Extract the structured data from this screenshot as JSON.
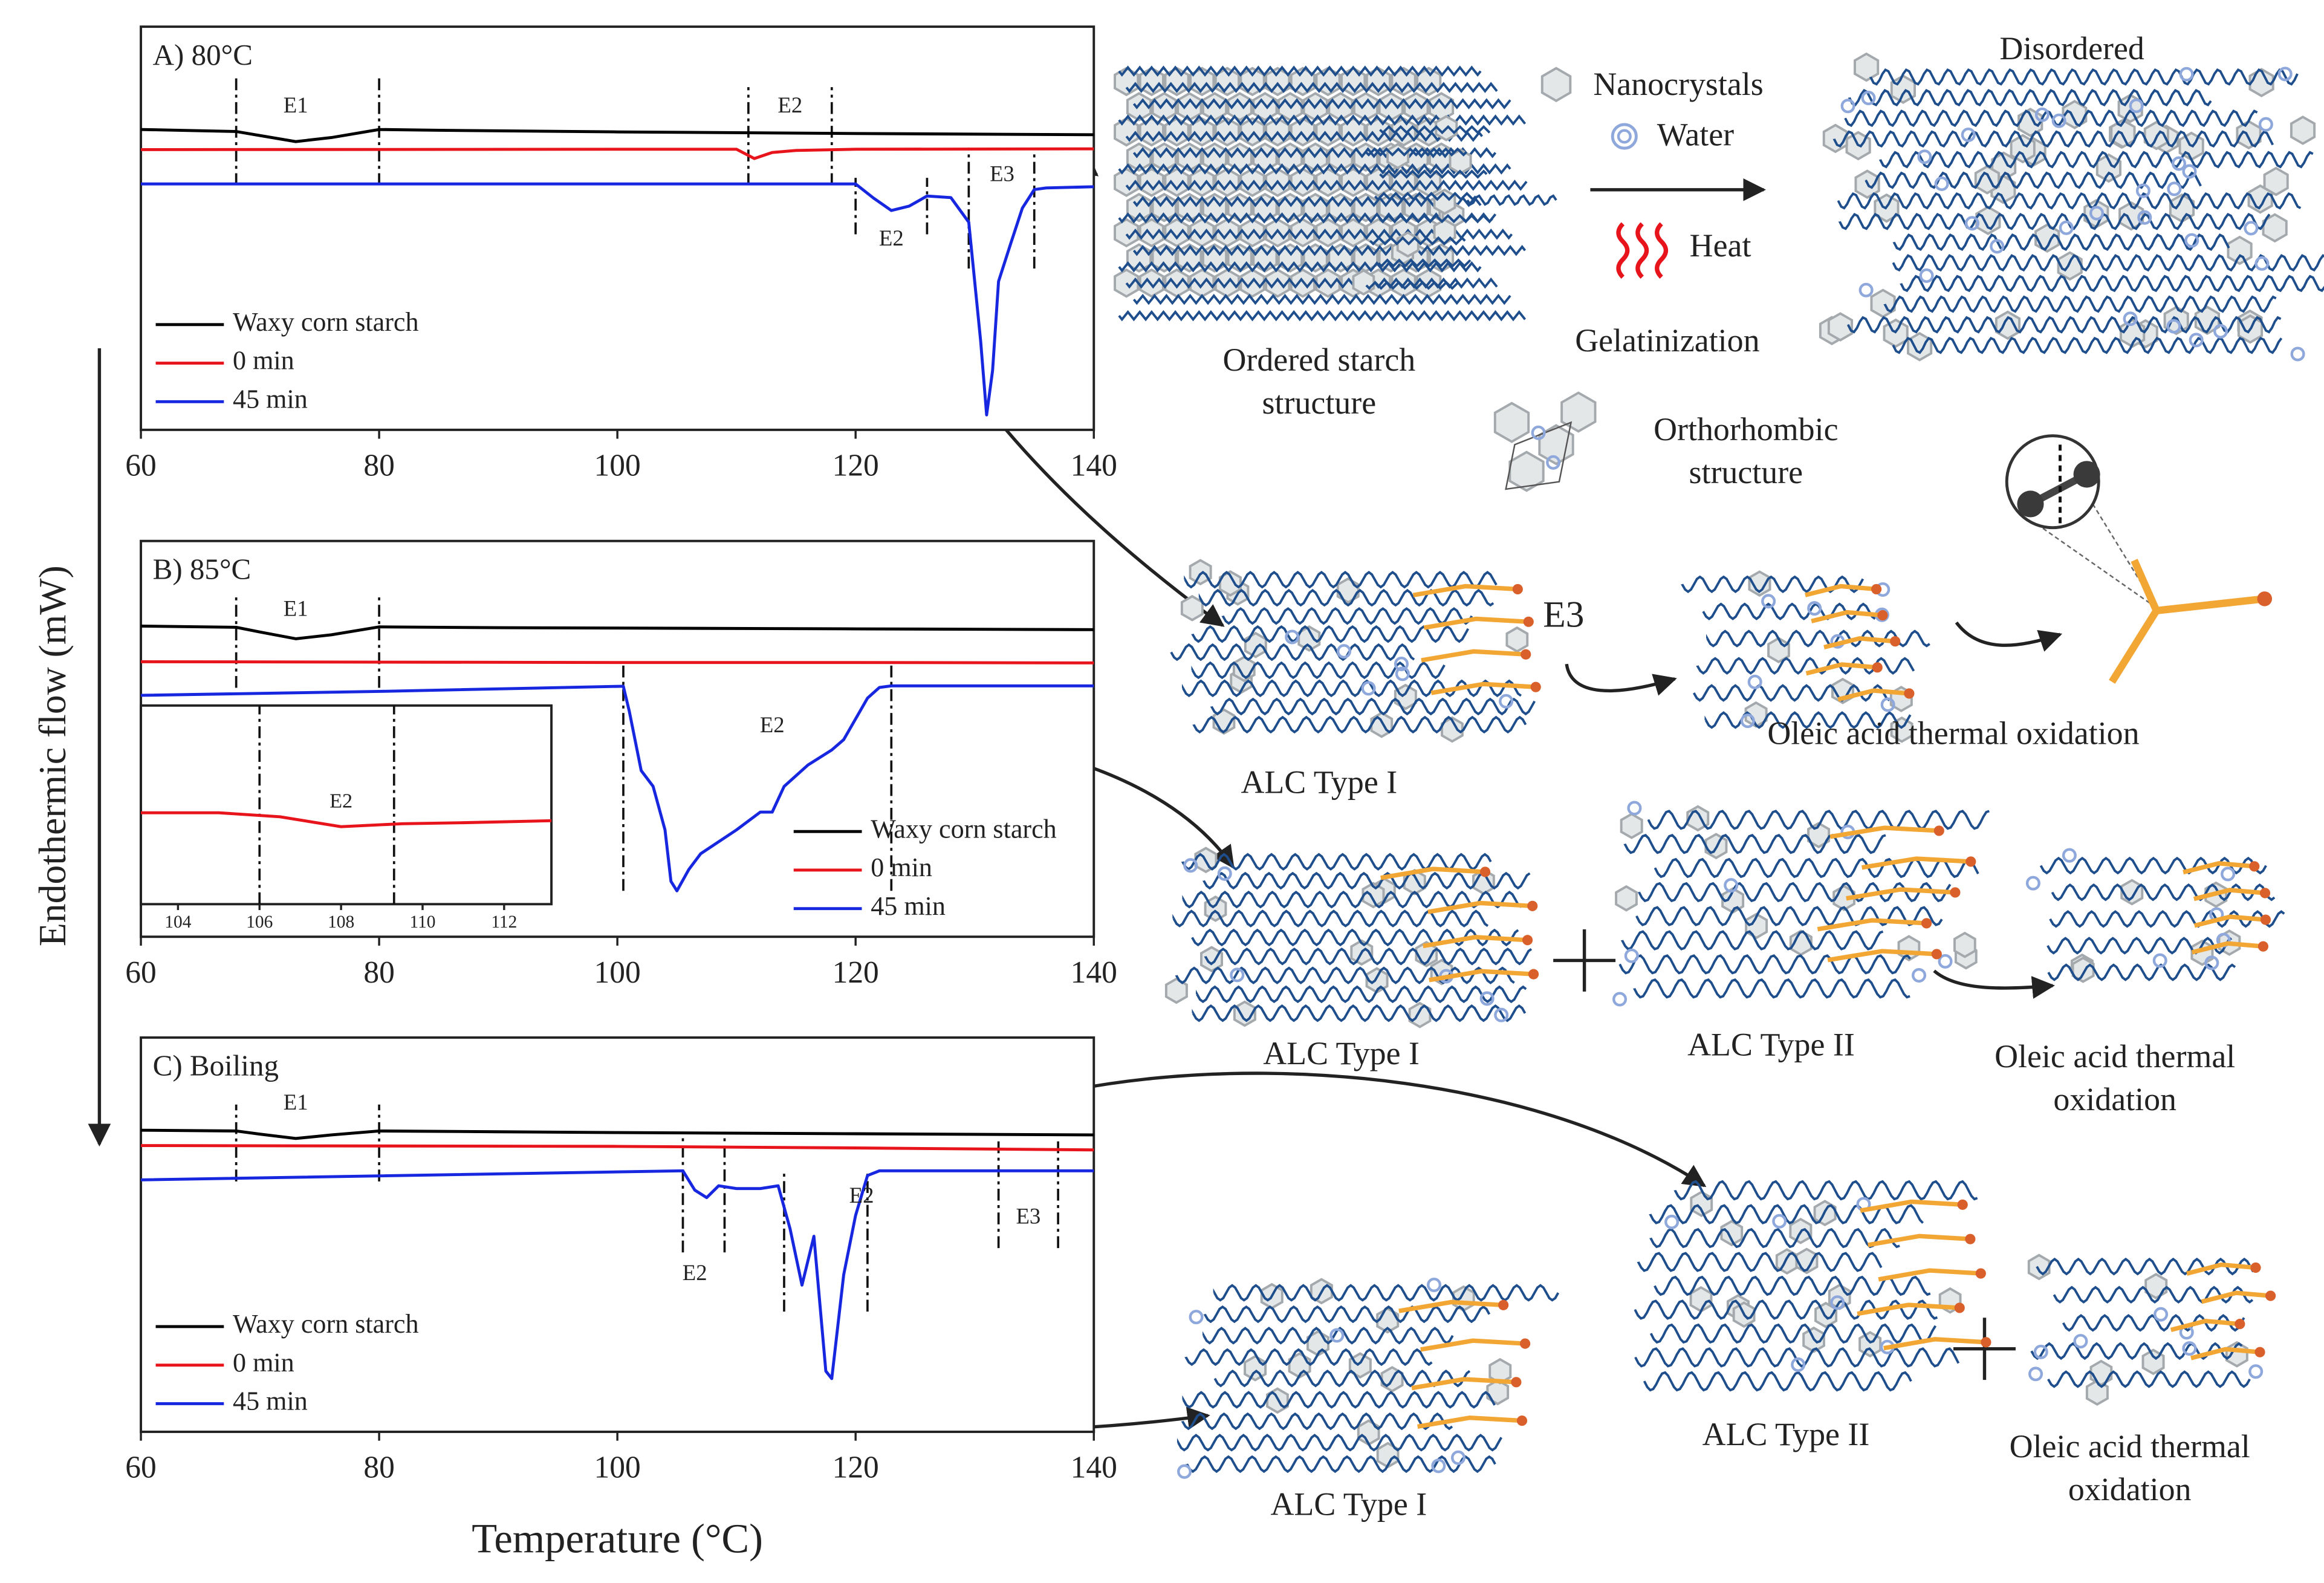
{
  "figure": {
    "ylabel": "Endothermic flow (mW)"
  },
  "chart_data": [
    {
      "type": "line",
      "title": "A) 80°C",
      "xlim": [
        60,
        140
      ],
      "xticks": [
        60,
        80,
        100,
        120,
        140
      ],
      "ylim": [
        0,
        100
      ],
      "legend": "lower left",
      "series": [
        {
          "name": "Waxy corn starch",
          "color": "#000000",
          "x": [
            60,
            68,
            70,
            73,
            76,
            80,
            85,
            100,
            120,
            140
          ],
          "values": [
            74.5,
            74,
            73,
            71.5,
            72.5,
            74.5,
            74.3,
            73.9,
            73.5,
            73.2
          ]
        },
        {
          "name": "0 min",
          "color": "#e8141c",
          "x": [
            60,
            100,
            110,
            111.5,
            113,
            115,
            120,
            140
          ],
          "values": [
            69.5,
            69.6,
            69.6,
            67.3,
            68.8,
            69.3,
            69.6,
            69.7
          ]
        },
        {
          "name": "45 min",
          "color": "#1727e0",
          "x": [
            60,
            100,
            120,
            121.5,
            123,
            124.5,
            126,
            128,
            129.5,
            130.5,
            131,
            131.5,
            132,
            133,
            134,
            135,
            136,
            140
          ],
          "values": [
            61,
            61,
            61,
            57.5,
            54.4,
            55.5,
            58,
            57.6,
            51.5,
            22,
            3.7,
            14.7,
            36.8,
            46,
            55,
            59.6,
            60,
            60.3
          ]
        }
      ],
      "dividers": [
        {
          "x": 68,
          "from": 60.7,
          "to": 88
        },
        {
          "x": 80,
          "from": 60.7,
          "to": 88
        },
        {
          "x": 111,
          "from": 60.7,
          "to": 85
        },
        {
          "x": 118,
          "from": 60.7,
          "to": 85
        },
        {
          "x": 120,
          "from": 48.5,
          "to": 62.5
        },
        {
          "x": 126,
          "from": 48.5,
          "to": 62.5
        },
        {
          "x": 129.5,
          "from": 40,
          "to": 70
        },
        {
          "x": 135,
          "from": 40,
          "to": 70
        }
      ],
      "annotations": [
        {
          "text": "E1",
          "x": 73,
          "y": 80
        },
        {
          "text": "E2",
          "x": 114.5,
          "y": 80
        },
        {
          "text": "E2",
          "x": 123,
          "y": 47
        },
        {
          "text": "E3",
          "x": 132.3,
          "y": 63
        }
      ]
    },
    {
      "type": "line",
      "title": "B) 85°C",
      "xlim": [
        60,
        140
      ],
      "xticks": [
        60,
        80,
        100,
        120,
        140
      ],
      "ylim": [
        0,
        100
      ],
      "legend": "lower right",
      "series": [
        {
          "name": "Waxy corn starch",
          "color": "#000000",
          "x": [
            60,
            68,
            70,
            73,
            76,
            80,
            90,
            100,
            120,
            140
          ],
          "values": [
            78.5,
            78.2,
            77,
            75.3,
            76.3,
            78.3,
            78.1,
            78,
            77.8,
            77.6
          ]
        },
        {
          "name": "0 min",
          "color": "#e8141c",
          "x": [
            60,
            100,
            120,
            140
          ],
          "values": [
            69.5,
            69.3,
            69.3,
            69.2
          ]
        },
        {
          "name": "45 min",
          "color": "#1727e0",
          "x": [
            60,
            80,
            100.5,
            101,
            102,
            103,
            104,
            104.5,
            105,
            106,
            107,
            110,
            112,
            113,
            114,
            116,
            118,
            119,
            121,
            122,
            123,
            140
          ],
          "values": [
            61,
            62,
            63.3,
            57,
            42,
            38,
            27,
            14,
            11.6,
            17,
            21,
            27,
            31.5,
            31.5,
            38,
            43.4,
            47.2,
            49.8,
            60.3,
            63,
            63.4,
            63.4
          ]
        }
      ],
      "dividers": [
        {
          "x": 68,
          "from": 62.9,
          "to": 86.5
        },
        {
          "x": 80,
          "from": 62.9,
          "to": 86.5
        },
        {
          "x": 100.5,
          "from": 11.6,
          "to": 69.3
        },
        {
          "x": 123,
          "from": 11.6,
          "to": 69.3
        }
      ],
      "annotations": [
        {
          "text": "E1",
          "x": 73,
          "y": 82.4
        },
        {
          "text": "E2",
          "x": 113,
          "y": 53
        }
      ],
      "inset": {
        "type": "line",
        "xlim": [
          103.09,
          113.16
        ],
        "xticks": [
          104,
          106,
          108,
          110,
          112
        ],
        "ylim": [
          0,
          100
        ],
        "series": [
          {
            "name": "0 min",
            "color": "#e8141c",
            "x": [
              103.09,
              105,
              106.5,
              108,
              109.5,
              111,
              113.16
            ],
            "values": [
              46,
              46,
              44,
              39,
              40.5,
              41,
              42
            ]
          }
        ],
        "dividers": [
          {
            "x": 106,
            "from": 0,
            "to": 100
          },
          {
            "x": 109.3,
            "from": 0,
            "to": 100
          }
        ],
        "annotations": [
          {
            "text": "E2",
            "x": 108,
            "y": 51
          }
        ]
      }
    },
    {
      "type": "line",
      "title": "C) Boiling",
      "xlabel": "Temperature (°C)",
      "xlim": [
        60,
        140
      ],
      "xticks": [
        60,
        80,
        100,
        120,
        140
      ],
      "ylim": [
        0,
        100
      ],
      "legend": "lower left",
      "series": [
        {
          "name": "Waxy corn starch",
          "color": "#000000",
          "x": [
            60,
            68,
            70,
            73,
            76,
            80,
            90,
            100,
            120,
            140
          ],
          "values": [
            76.5,
            76.3,
            75.5,
            74.4,
            75.3,
            76.3,
            76.1,
            75.9,
            75.6,
            75.3
          ]
        },
        {
          "name": "0 min",
          "color": "#e8141c",
          "x": [
            60,
            100,
            120,
            140
          ],
          "values": [
            72.6,
            72.4,
            72,
            71.5
          ]
        },
        {
          "name": "45 min",
          "color": "#1727e0",
          "x": [
            60,
            105.5,
            106.5,
            107.5,
            108.5,
            110,
            112,
            113.5,
            114.5,
            115.5,
            116.5,
            117.5,
            118,
            119,
            120,
            121,
            122,
            140
          ],
          "values": [
            63.9,
            66.2,
            61.3,
            59.4,
            62.4,
            61.7,
            61.7,
            62.4,
            51.5,
            37.2,
            49.6,
            15.4,
            13.5,
            39.8,
            54.9,
            65,
            66.2,
            66.2
          ]
        }
      ],
      "dividers": [
        {
          "x": 68,
          "from": 63.5,
          "to": 83
        },
        {
          "x": 80,
          "from": 63.5,
          "to": 83
        },
        {
          "x": 105.5,
          "from": 45.5,
          "to": 75.6
        },
        {
          "x": 109,
          "from": 45.5,
          "to": 75.6
        },
        {
          "x": 114,
          "from": 30.5,
          "to": 66.2
        },
        {
          "x": 121,
          "from": 30.5,
          "to": 66.2
        },
        {
          "x": 132,
          "from": 46.6,
          "to": 73.7
        },
        {
          "x": 137,
          "from": 46.6,
          "to": 73.7
        }
      ],
      "annotations": [
        {
          "text": "E1",
          "x": 73,
          "y": 83
        },
        {
          "text": "E2",
          "x": 120.5,
          "y": 59.4
        },
        {
          "text": "E2",
          "x": 106.5,
          "y": 39.8
        },
        {
          "text": "E3",
          "x": 134.5,
          "y": 54.1
        }
      ]
    }
  ],
  "diagram": {
    "labels": [
      {
        "lines": [
          "Ordered starch",
          "structure"
        ]
      },
      {
        "lines": [
          "Nanocrystals"
        ]
      },
      {
        "lines": [
          "Water"
        ]
      },
      {
        "lines": [
          "Heat"
        ]
      },
      {
        "lines": [
          "Gelatinization"
        ]
      },
      {
        "lines": [
          "Disordered"
        ]
      },
      {
        "lines": [
          "Orthorhombic",
          "structure"
        ]
      },
      {
        "lines": [
          "E3"
        ]
      },
      {
        "lines": [
          "ALC Type I"
        ]
      },
      {
        "lines": [
          "Oleic acid thermal oxidation"
        ]
      },
      {
        "lines": [
          "ALC Type I"
        ]
      },
      {
        "lines": [
          "ALC Type II"
        ]
      },
      {
        "lines": [
          "Oleic acid thermal",
          "oxidation"
        ]
      },
      {
        "lines": [
          "ALC Type II"
        ]
      },
      {
        "lines": [
          "Oleic acid thermal",
          "oxidation"
        ]
      },
      {
        "lines": [
          "ALC Type I"
        ]
      }
    ]
  }
}
